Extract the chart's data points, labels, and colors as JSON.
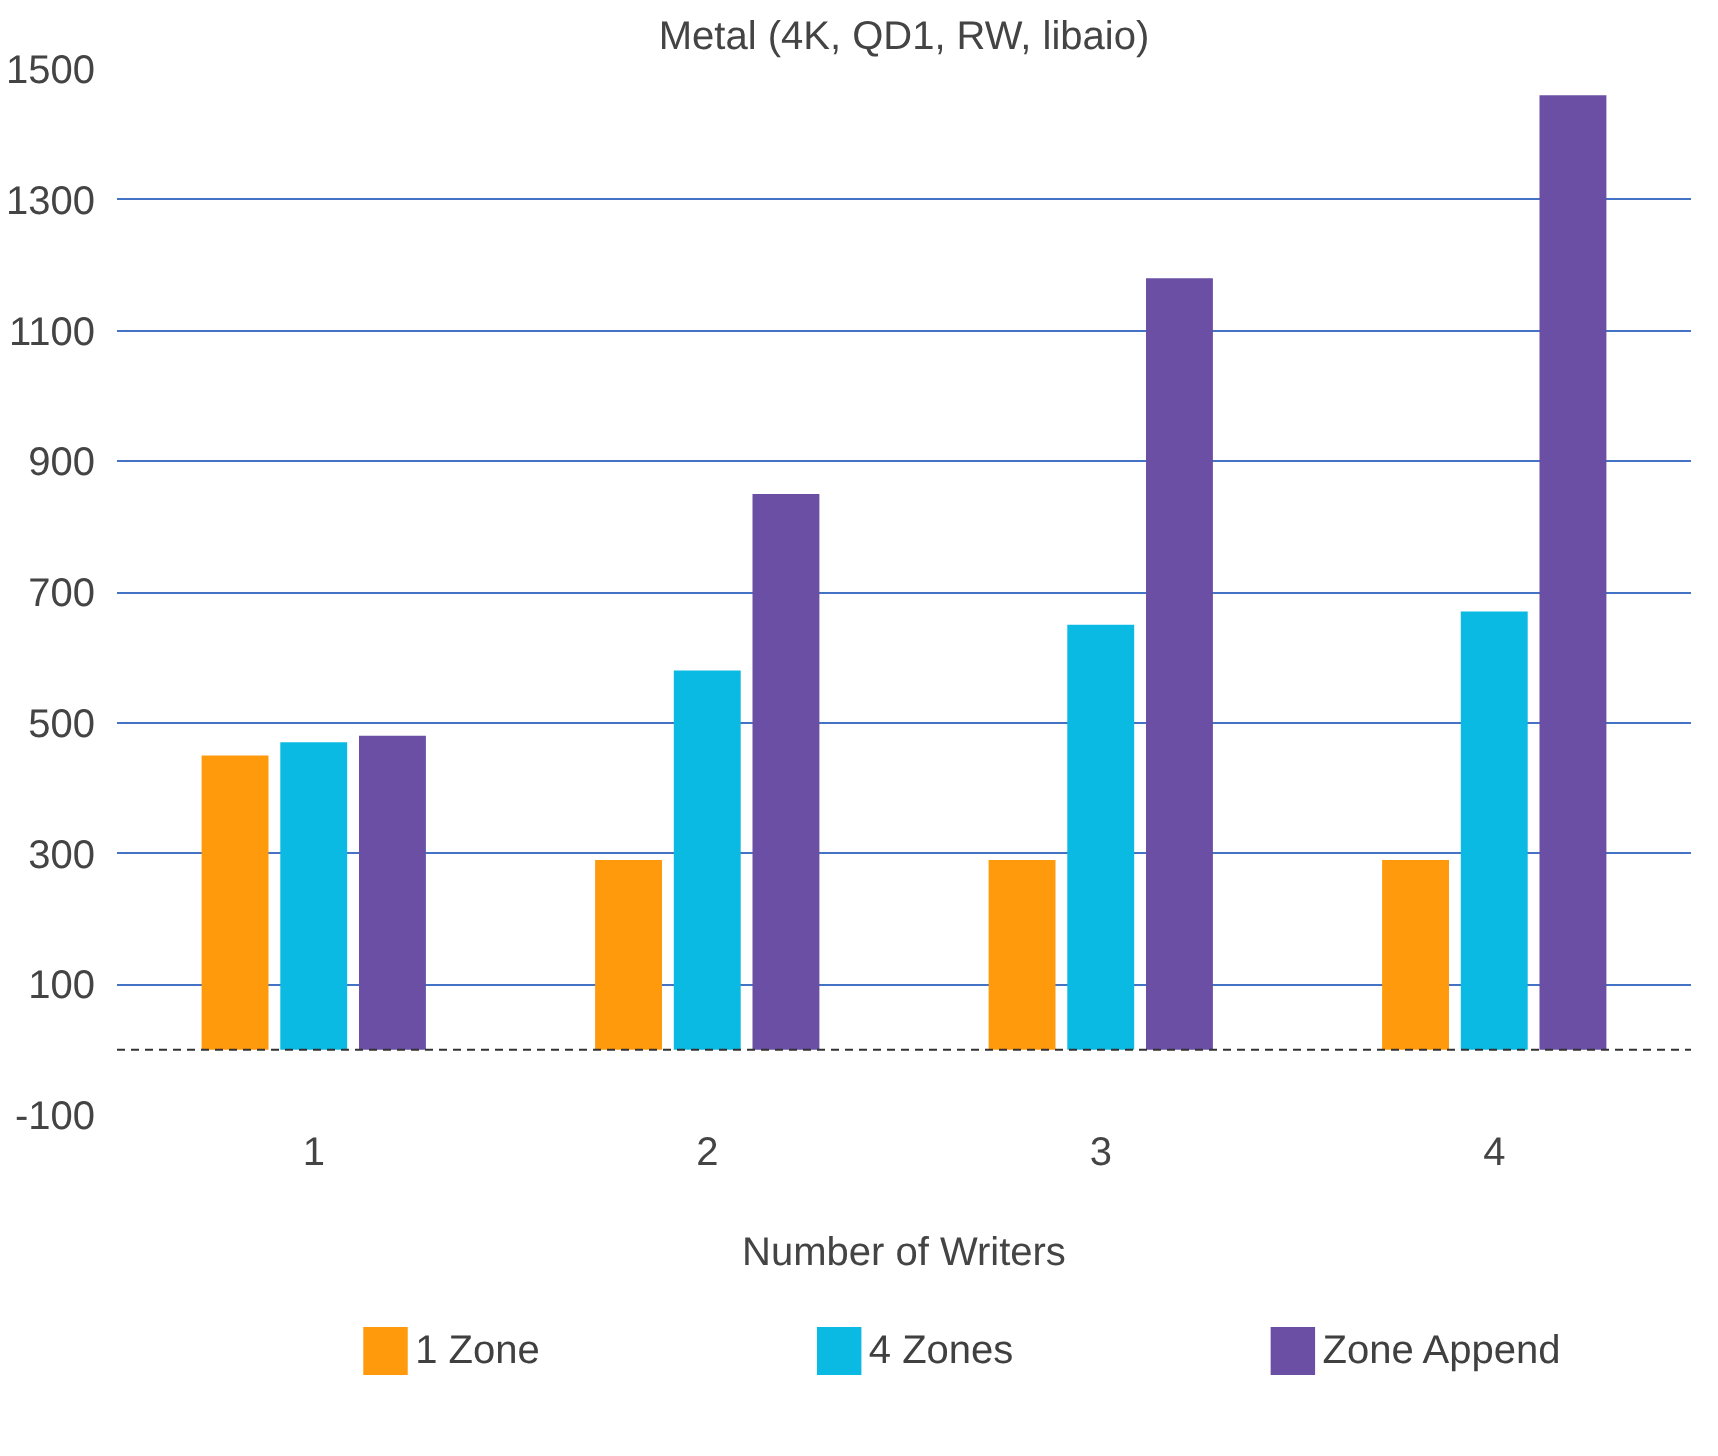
{
  "chart_data": {
    "type": "bar",
    "title": "Metal (4K, QD1, RW, libaio)",
    "xlabel": "Number of Writers",
    "categories": [
      "1",
      "2",
      "3",
      "4"
    ],
    "series": [
      {
        "name": "1 Zone",
        "color": "#ff9a0d",
        "values": [
          450,
          290,
          290,
          290
        ]
      },
      {
        "name": "4 Zones",
        "color": "#0bbae2",
        "values": [
          470,
          580,
          650,
          670
        ]
      },
      {
        "name": "Zone Append",
        "color": "#6a4fa5",
        "values": [
          480,
          850,
          1180,
          1460
        ]
      }
    ],
    "ylim": [
      -100,
      1500
    ],
    "yticks": [
      -100,
      100,
      300,
      500,
      700,
      900,
      1100,
      1300,
      1500
    ],
    "grid": "y",
    "legend": "bottom",
    "ref_lines": [
      {
        "axis": "y",
        "value": 0,
        "color": "#333333",
        "line_style": "dashed"
      }
    ]
  }
}
